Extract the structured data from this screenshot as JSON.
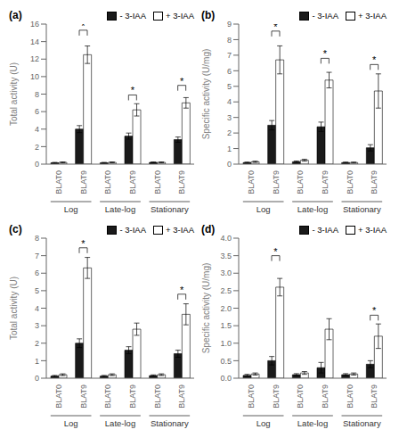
{
  "chart_data": [
    {
      "type": "bar",
      "title": "(a)",
      "ylabel": "Total activity (U)",
      "ylim": [
        0,
        16
      ],
      "yticks": [
        0,
        2,
        4,
        6,
        8,
        10,
        12,
        14,
        16
      ],
      "categories": [
        "BLAT0",
        "BLAT9",
        "BLAT0",
        "BLAT9",
        "BLAT0",
        "BLAT9"
      ],
      "groups": [
        "Log",
        "Late-log",
        "Stationary"
      ],
      "series": [
        {
          "name": "- 3-IAA",
          "color": "#1a1a1a",
          "values": [
            0.15,
            4.0,
            0.15,
            3.2,
            0.2,
            2.8
          ],
          "errors": [
            0.05,
            0.4,
            0.05,
            0.35,
            0.05,
            0.3
          ]
        },
        {
          "name": "+ 3-IAA",
          "color": "#ffffff",
          "values": [
            0.2,
            12.5,
            0.2,
            6.2,
            0.2,
            7.0
          ],
          "errors": [
            0.05,
            1.0,
            0.05,
            0.7,
            0.05,
            0.6
          ]
        }
      ],
      "annotation_text": "*",
      "annotation_y": [
        null,
        15.3,
        null,
        7.9,
        null,
        9.0
      ],
      "legend": "upper right",
      "edge_color": "#000000"
    },
    {
      "type": "bar",
      "title": "(b)",
      "ylabel": "Specific activity (U/mg)",
      "ylim": [
        0,
        9
      ],
      "yticks": [
        0,
        1,
        2,
        3,
        4,
        5,
        6,
        7,
        8,
        9
      ],
      "categories": [
        "BLAT0",
        "BLAT9",
        "BLAT0",
        "BLAT9",
        "BLAT0",
        "BLAT9"
      ],
      "groups": [
        "Log",
        "Late-log",
        "Stationary"
      ],
      "series": [
        {
          "name": "- 3-IAA",
          "color": "#1a1a1a",
          "values": [
            0.1,
            2.5,
            0.15,
            2.4,
            0.1,
            1.05
          ],
          "errors": [
            0.03,
            0.3,
            0.05,
            0.3,
            0.03,
            0.2
          ]
        },
        {
          "name": "+ 3-IAA",
          "color": "#ffffff",
          "values": [
            0.15,
            6.7,
            0.25,
            5.4,
            0.1,
            4.7
          ],
          "errors": [
            0.04,
            0.9,
            0.06,
            0.5,
            0.03,
            1.1
          ]
        }
      ],
      "annotation_text": "*",
      "annotation_y": [
        null,
        8.55,
        null,
        6.8,
        null,
        6.4
      ],
      "legend": "upper right",
      "edge_color": "#000000"
    },
    {
      "type": "bar",
      "title": "(c)",
      "ylabel": "Total activity (U)",
      "ylim": [
        0,
        8
      ],
      "yticks": [
        0,
        1,
        2,
        3,
        4,
        5,
        6,
        7,
        8
      ],
      "categories": [
        "BLAT0",
        "BLAT9",
        "BLAT0",
        "BLAT9",
        "BLAT0",
        "BLAT9"
      ],
      "groups": [
        "Log",
        "Late-log",
        "Stationary"
      ],
      "series": [
        {
          "name": "- 3-IAA",
          "color": "#1a1a1a",
          "values": [
            0.12,
            2.0,
            0.12,
            1.6,
            0.15,
            1.4
          ],
          "errors": [
            0.04,
            0.25,
            0.04,
            0.2,
            0.04,
            0.2
          ]
        },
        {
          "name": "+ 3-IAA",
          "color": "#ffffff",
          "values": [
            0.2,
            6.3,
            0.2,
            2.8,
            0.2,
            3.65
          ],
          "errors": [
            0.05,
            0.6,
            0.05,
            0.35,
            0.05,
            0.6
          ]
        }
      ],
      "annotation_text": "*",
      "annotation_y": [
        null,
        7.45,
        null,
        null,
        null,
        4.8
      ],
      "legend": "upper right",
      "edge_color": "#000000"
    },
    {
      "type": "bar",
      "title": "(d)",
      "ylabel": "Specific activity (U/mg)",
      "ylim": [
        0,
        4
      ],
      "yticks": [
        {
          "value": 0,
          "label": "0.0"
        },
        0.5,
        {
          "value": 1,
          "label": "1.0"
        },
        1.5,
        {
          "value": 2,
          "label": "2.0"
        },
        2.5,
        {
          "value": 3,
          "label": "3.0"
        },
        3.5,
        {
          "value": 4,
          "label": "4.0"
        }
      ],
      "categories": [
        "BLAT0",
        "BLAT9",
        "BLAT0",
        "BLAT9",
        "BLAT0",
        "BLAT9"
      ],
      "groups": [
        "Log",
        "Late-log",
        "Stationary"
      ],
      "series": [
        {
          "name": "- 3-IAA",
          "color": "#1a1a1a",
          "values": [
            0.08,
            0.5,
            0.1,
            0.3,
            0.1,
            0.4
          ],
          "errors": [
            0.03,
            0.12,
            0.03,
            0.15,
            0.03,
            0.1
          ]
        },
        {
          "name": "+ 3-IAA",
          "color": "#ffffff",
          "values": [
            0.12,
            2.6,
            0.15,
            1.4,
            0.12,
            1.2
          ],
          "errors": [
            0.03,
            0.25,
            0.04,
            0.3,
            0.03,
            0.35
          ]
        }
      ],
      "annotation_text": "*",
      "annotation_y": [
        null,
        3.5,
        null,
        null,
        null,
        1.8
      ],
      "legend": "upper right",
      "edge_color": "#000000"
    }
  ]
}
